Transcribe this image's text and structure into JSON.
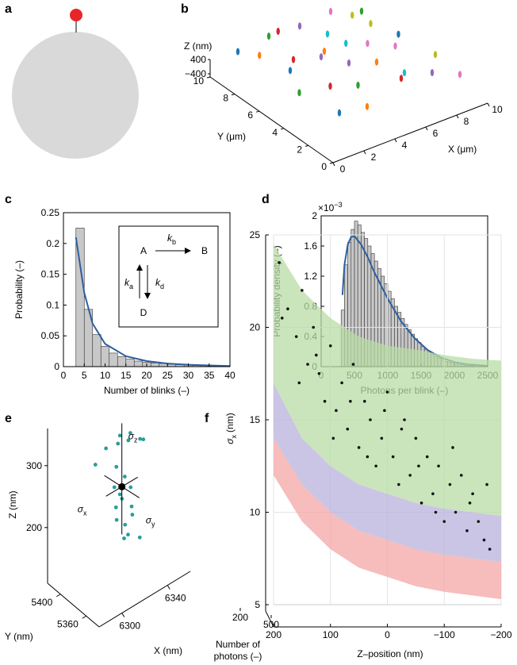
{
  "chart_data": [
    {
      "type": "sphere",
      "panel_label": "a",
      "sphere_color": "#d9d9d9",
      "pin_color": "#e8262a"
    },
    {
      "type": "scatter3d",
      "panel_label": "b",
      "xlabel": "X (μm)",
      "ylabel": "Y (μm)",
      "zlabel": "Z (nm)",
      "xlim": [
        0,
        10
      ],
      "ylim": [
        0,
        10
      ],
      "zlim": [
        -400,
        400
      ],
      "xticks": [
        0,
        2,
        4,
        6,
        8,
        10
      ],
      "yticks": [
        0,
        2,
        4,
        6,
        8,
        10
      ],
      "zticks": [
        {
          "value": -400,
          "label": "−400"
        },
        400
      ],
      "x": [
        1,
        2,
        3,
        4,
        5,
        6,
        7,
        8,
        9,
        2,
        3,
        4,
        5,
        6,
        7,
        8,
        9,
        1,
        3,
        5,
        6,
        7,
        8,
        9,
        2,
        4,
        6,
        8,
        3,
        9
      ],
      "y": [
        9,
        8.5,
        9,
        9.5,
        9,
        8,
        9,
        8.5,
        9,
        6,
        7,
        6,
        7,
        6.5,
        6,
        7,
        6,
        4,
        4,
        5,
        4,
        3,
        5,
        3,
        2,
        3,
        2,
        2,
        1,
        1
      ],
      "z": [
        100,
        -200,
        300,
        0,
        200,
        -100,
        350,
        50,
        -300,
        150,
        -50,
        250,
        -250,
        100,
        0,
        300,
        -150,
        200,
        -100,
        50,
        250,
        -200,
        0,
        150,
        -300,
        100,
        300,
        -50,
        200,
        0
      ],
      "colors": [
        "#1f77b4",
        "#ff7f0e",
        "#2ca02c",
        "#d62728",
        "#9467bd",
        "#17becf",
        "#e377c2",
        "#bcbd22",
        "#2ca02c",
        "#1f77b4",
        "#d62728",
        "#9467bd",
        "#ff7f0e",
        "#17becf",
        "#e377c2",
        "#bcbd22",
        "#1f77b4",
        "#2ca02c",
        "#d62728",
        "#9467bd",
        "#ff7f0e",
        "#17becf",
        "#e377c2",
        "#bcbd22",
        "#1f77b4",
        "#2ca02c",
        "#d62728",
        "#9467bd",
        "#ff7f0e",
        "#e377c2"
      ]
    },
    {
      "type": "histogram",
      "panel_label": "c",
      "xlabel": "Number of blinks (–)",
      "ylabel": "Probability (–)",
      "xlim": [
        0,
        40
      ],
      "ylim": [
        0,
        0.25
      ],
      "xticks": [
        0,
        5,
        10,
        15,
        20,
        25,
        30,
        35,
        40
      ],
      "yticks": [
        0,
        0.05,
        0.1,
        0.15,
        0.2,
        0.25
      ],
      "bins": [
        3,
        5,
        7,
        9,
        11,
        13,
        15,
        17,
        19,
        21,
        23,
        25,
        27,
        29,
        31,
        33,
        35,
        37,
        39
      ],
      "values": [
        0.225,
        0.093,
        0.052,
        0.033,
        0.022,
        0.016,
        0.012,
        0.009,
        0.007,
        0.006,
        0.005,
        0.004,
        0.003,
        0.003,
        0.002,
        0.002,
        0.002,
        0.001
      ],
      "color": "#c8c8c8",
      "fit": {
        "color": "#2e5fa0",
        "x": [
          3,
          5,
          7,
          10,
          15,
          20,
          25,
          30,
          35,
          40
        ],
        "y": [
          0.21,
          0.12,
          0.07,
          0.037,
          0.017,
          0.009,
          0.005,
          0.003,
          0.002,
          0.001
        ]
      },
      "inset": {
        "state_a": "A",
        "state_b": "B",
        "state_d": "D",
        "k_b": {
          "symbol": "k",
          "subscript": "b"
        },
        "k_a": {
          "symbol": "k",
          "subscript": "a"
        },
        "k_d": {
          "symbol": "k",
          "subscript": "d"
        }
      }
    },
    {
      "type": "histogram",
      "panel_label": "d",
      "xlabel": "Photons per blink (–)",
      "ylabel": "Probability density (–)",
      "y_multiplier": {
        "base": "×10",
        "exponent": "−3"
      },
      "xlim": [
        0,
        2500
      ],
      "ylim": [
        0,
        2
      ],
      "xticks": [
        0,
        500,
        1000,
        1500,
        2000,
        2500
      ],
      "yticks": [
        0,
        0.4,
        0.8,
        1.2,
        1.6,
        2
      ],
      "bins": [
        300,
        350,
        400,
        450,
        500,
        550,
        600,
        650,
        700,
        750,
        800,
        850,
        900,
        950,
        1000,
        1050,
        1100,
        1150,
        1200,
        1250,
        1300,
        1350,
        1400,
        1450,
        1500,
        1550,
        1600,
        1650,
        1700,
        1750,
        1800,
        1850,
        1900,
        1950,
        2000,
        2050,
        2100,
        2150,
        2200,
        2250,
        2300
      ],
      "values": [
        0.75,
        1.35,
        1.65,
        1.82,
        1.93,
        1.88,
        1.78,
        1.7,
        1.6,
        1.5,
        1.4,
        1.3,
        1.2,
        1.1,
        1.0,
        0.9,
        0.8,
        0.72,
        0.64,
        0.56,
        0.49,
        0.43,
        0.37,
        0.32,
        0.27,
        0.23,
        0.19,
        0.16,
        0.13,
        0.11,
        0.09,
        0.07,
        0.06,
        0.05,
        0.04,
        0.03,
        0.025,
        0.02,
        0.015,
        0.01
      ],
      "color": "#c8c8c8",
      "fit": {
        "color": "#2e5fa0",
        "x": [
          320,
          350,
          400,
          450,
          500,
          600,
          700,
          800,
          1000,
          1200,
          1400,
          1600,
          1800,
          2000,
          2200,
          2500
        ],
        "y": [
          0.95,
          1.35,
          1.62,
          1.72,
          1.73,
          1.62,
          1.45,
          1.25,
          0.9,
          0.6,
          0.38,
          0.22,
          0.12,
          0.06,
          0.03,
          0.01
        ]
      }
    },
    {
      "type": "cluster3d",
      "panel_label": "e",
      "xlabel": "X (nm)",
      "ylabel": "Y (nm)",
      "zlabel": "Z (nm)",
      "xlim": [
        6280,
        6360
      ],
      "ylim": [
        5340,
        5420
      ],
      "zlim": [
        110,
        360
      ],
      "xticks": [
        6300,
        6340
      ],
      "yticks": [
        5360,
        5400
      ],
      "zticks": [
        200,
        300
      ],
      "color": "#2a9d9a",
      "x": [
        6318,
        6322,
        6326,
        6330,
        6312,
        6334,
        6338,
        6305,
        6320,
        6324,
        6316,
        6328,
        6322,
        6314,
        6326,
        6330,
        6318,
        6322,
        6334,
        6320,
        6328,
        6336
      ],
      "y": [
        5378,
        5382,
        5376,
        5380,
        5386,
        5372,
        5374,
        5390,
        5384,
        5378,
        5380,
        5376,
        5382,
        5374,
        5386,
        5378,
        5380,
        5374,
        5384,
        5372,
        5380,
        5376
      ],
      "z": [
        330,
        335,
        328,
        332,
        322,
        325,
        318,
        300,
        285,
        270,
        260,
        250,
        240,
        235,
        225,
        215,
        205,
        198,
        192,
        180,
        170,
        160
      ],
      "center": {
        "x": 6322,
        "y": 5379,
        "z": 255
      },
      "sigma_z": {
        "symbol": "σ",
        "subscript": "z"
      },
      "sigma_x": {
        "symbol": "σ",
        "subscript": "x"
      },
      "sigma_y": {
        "symbol": "σ",
        "subscript": "y"
      }
    },
    {
      "type": "bands3d",
      "panel_label": "f",
      "xlabel": "Z–position (nm)",
      "ylabel": {
        "symbol": "σ",
        "subscript": "x",
        "unit": "(nm)"
      },
      "depth_label": [
        "Number of",
        "photons (–)"
      ],
      "xlim": [
        200,
        -200
      ],
      "ylim": [
        5,
        25
      ],
      "depth_lim": [
        200,
        600
      ],
      "xticks": [
        200,
        100,
        0,
        {
          "value": -100,
          "label": "−100"
        },
        {
          "value": -200,
          "label": "−200"
        }
      ],
      "yticks": [
        5,
        10,
        15,
        20,
        25
      ],
      "depth_ticks": [
        200,
        500
      ],
      "band_x": [
        200,
        150,
        100,
        50,
        0,
        -50,
        -100,
        -150,
        -200
      ],
      "bands": [
        {
          "color": "#f4a6a6",
          "upper": [
            14,
            11.5,
            10,
            9,
            8.5,
            8,
            7.7,
            7.5,
            7.3
          ],
          "lower": [
            12,
            9.5,
            8,
            7,
            6.5,
            6,
            5.7,
            5.5,
            5.3
          ]
        },
        {
          "color": "#b9b1dc",
          "upper": [
            17,
            14,
            12.5,
            11.5,
            11,
            10.5,
            10.2,
            10,
            9.8
          ],
          "lower": [
            14,
            11.5,
            10,
            9,
            8.5,
            8,
            7.7,
            7.5,
            7.3
          ]
        },
        {
          "color": "#b8dca6",
          "upper": [
            24.5,
            22,
            20.5,
            19.5,
            19,
            18.8,
            18.5,
            18.3,
            18.2
          ],
          "lower": [
            17,
            14,
            12.5,
            11.5,
            11,
            10.5,
            10.2,
            10,
            9.8
          ]
        }
      ],
      "points_color": "#111111",
      "x": [
        190,
        175,
        160,
        150,
        140,
        130,
        120,
        110,
        100,
        90,
        80,
        70,
        60,
        50,
        40,
        30,
        20,
        10,
        0,
        -10,
        -20,
        -30,
        -40,
        -50,
        -60,
        -70,
        -80,
        -90,
        -100,
        -110,
        -120,
        -130,
        -140,
        -150,
        -160,
        -170,
        -180,
        185,
        155,
        125,
        95,
        65,
        35,
        5,
        -25,
        -55,
        -85,
        -115,
        -145,
        -175
      ],
      "y": [
        23.5,
        21,
        19.5,
        22,
        18,
        20,
        17.5,
        16,
        19,
        15.5,
        17,
        14.5,
        18,
        13.5,
        16,
        15,
        12.5,
        14,
        16.5,
        13,
        11.5,
        15,
        12,
        14,
        10.5,
        13,
        11,
        12.5,
        9.5,
        11.5,
        10,
        12,
        9,
        11,
        9.5,
        8.5,
        8,
        20.5,
        17,
        18.5,
        14,
        16,
        13,
        15.5,
        14.5,
        12.5,
        10,
        13.5,
        10.5,
        11.5
      ]
    }
  ]
}
